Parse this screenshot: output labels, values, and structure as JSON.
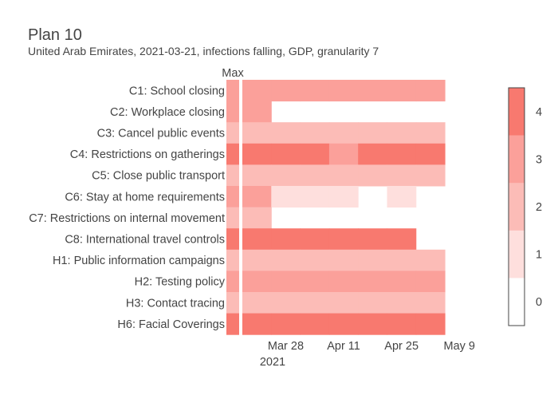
{
  "chart_data": {
    "type": "heatmap",
    "title": "Plan 10",
    "subtitle": "United Arab Emirates, 2021-03-21, infections falling, GDP, granularity 7",
    "max_column_label": "Max",
    "x_tick_labels": [
      "Mar 28",
      "Apr 11",
      "Apr 25",
      "May 9"
    ],
    "x_year_label": "2021",
    "x_ticks_dates": [
      "2021-03-28",
      "2021-04-11",
      "2021-04-25",
      "2021-05-09"
    ],
    "weeks": [
      "2021-03-21",
      "2021-03-28",
      "2021-04-04",
      "2021-04-11",
      "2021-04-18",
      "2021-04-25",
      "2021-05-02"
    ],
    "colorbar": {
      "min": 0,
      "max": 4,
      "ticks": [
        0,
        1,
        2,
        3,
        4
      ]
    },
    "colors": [
      "#ffffff",
      "#fedfdd",
      "#fcbcb7",
      "#fba09a",
      "#f8796f"
    ],
    "rows": [
      {
        "label": "C1: School closing",
        "max": 3,
        "values": [
          3,
          3,
          3,
          3,
          3,
          3,
          3
        ]
      },
      {
        "label": "C2: Workplace closing",
        "max": 3,
        "values": [
          3,
          null,
          null,
          null,
          null,
          null,
          null
        ]
      },
      {
        "label": "C3: Cancel public events",
        "max": 2,
        "values": [
          2,
          2,
          2,
          2,
          2,
          2,
          2
        ]
      },
      {
        "label": "C4: Restrictions on gatherings",
        "max": 4,
        "values": [
          4,
          4,
          4,
          3,
          4,
          4,
          4
        ]
      },
      {
        "label": "C5: Close public transport",
        "max": 2,
        "values": [
          2,
          2,
          2,
          2,
          2,
          2,
          2
        ]
      },
      {
        "label": "C6: Stay at home requirements",
        "max": 3,
        "values": [
          3,
          1,
          1,
          1,
          null,
          1,
          null
        ]
      },
      {
        "label": "C7: Restrictions on internal movement",
        "max": 2,
        "values": [
          2,
          null,
          null,
          null,
          null,
          null,
          null
        ]
      },
      {
        "label": "C8: International travel controls",
        "max": 4,
        "values": [
          4,
          4,
          4,
          4,
          4,
          4,
          null
        ]
      },
      {
        "label": "H1: Public information campaigns",
        "max": 2,
        "values": [
          2,
          2,
          2,
          2,
          2,
          2,
          2
        ]
      },
      {
        "label": "H2: Testing policy",
        "max": 3,
        "values": [
          3,
          3,
          3,
          3,
          3,
          3,
          3
        ]
      },
      {
        "label": "H3: Contact tracing",
        "max": 2,
        "values": [
          2,
          2,
          2,
          2,
          2,
          2,
          2
        ]
      },
      {
        "label": "H6: Facial Coverings",
        "max": 4,
        "values": [
          4,
          4,
          4,
          4,
          4,
          4,
          4
        ]
      }
    ]
  }
}
